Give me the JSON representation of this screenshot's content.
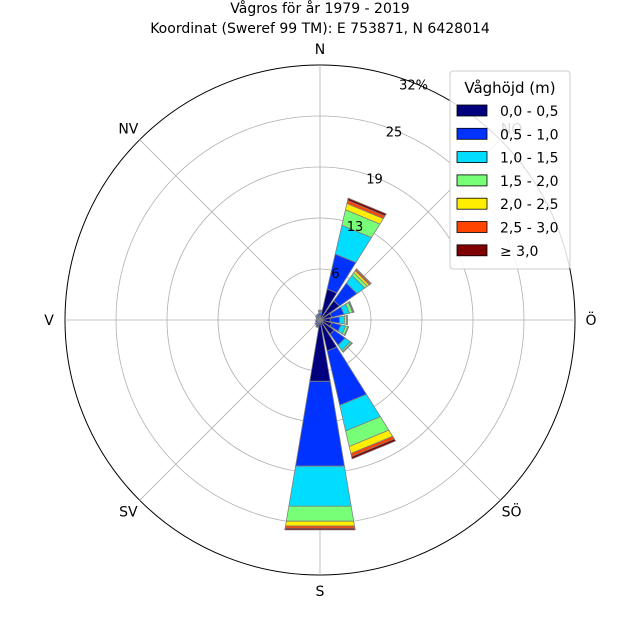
{
  "title": "Vågros för år 1979 - 2019",
  "subtitle": "Koordinat (Sweref 99 TM): E 753871, N 6428014",
  "chart_data": {
    "type": "windrose",
    "title": "Vågros för år 1979 - 2019",
    "subtitle": "Koordinat (Sweref 99 TM): E 753871, N 6428014",
    "direction_labels": [
      "N",
      "NO",
      "Ö",
      "SÖ",
      "S",
      "SV",
      "V",
      "NV"
    ],
    "direction_angles_deg": [
      0,
      45,
      90,
      135,
      180,
      225,
      270,
      315
    ],
    "radial_ticks": [
      "6",
      "13",
      "19",
      "25",
      "32%"
    ],
    "radial_tick_values": [
      6.4,
      12.8,
      19.2,
      25.6,
      32
    ],
    "rmax": 32,
    "grid": true,
    "legend": {
      "title": "Våghöjd (m)",
      "placement": "top-right",
      "entries": [
        "0,0 - 0,5",
        "0,5 - 1,0",
        "1,0 - 1,5",
        "1,5 - 2,0",
        "2,0 - 2,5",
        "2,5 - 3,0",
        "≥ 3,0"
      ]
    },
    "bin_colors": [
      "#00007f",
      "#0033ff",
      "#00ddff",
      "#77ff77",
      "#ffee00",
      "#ff4400",
      "#7f0000"
    ],
    "sectors": [
      {
        "dir_deg": 0,
        "values": [
          0.5,
          0.4,
          0.2,
          0.1,
          0.05,
          0.0,
          0.0
        ]
      },
      {
        "dir_deg": 22.5,
        "values": [
          4.0,
          4.5,
          3.7,
          2.0,
          0.8,
          0.4,
          0.3
        ]
      },
      {
        "dir_deg": 45,
        "values": [
          3.0,
          2.7,
          1.2,
          0.4,
          0.3,
          0.2,
          0.1
        ]
      },
      {
        "dir_deg": 67.5,
        "values": [
          1.5,
          1.6,
          0.7,
          0.4,
          0.1,
          0.1,
          0.0
        ]
      },
      {
        "dir_deg": 90,
        "values": [
          1.3,
          1.2,
          0.6,
          0.3,
          0.1,
          0.0,
          0.0
        ]
      },
      {
        "dir_deg": 112.5,
        "values": [
          1.5,
          1.2,
          0.6,
          0.3,
          0.1,
          0.0,
          0.0
        ]
      },
      {
        "dir_deg": 135,
        "values": [
          2.2,
          1.7,
          0.8,
          0.2,
          0.1,
          0.0,
          0.0
        ]
      },
      {
        "dir_deg": 157.5,
        "values": [
          4.0,
          7.0,
          3.3,
          2.0,
          0.9,
          0.4,
          0.3
        ]
      },
      {
        "dir_deg": 180,
        "values": [
          7.8,
          10.8,
          5.1,
          1.9,
          0.6,
          0.3,
          0.2
        ]
      },
      {
        "dir_deg": 202.5,
        "values": [
          0.6,
          0.3,
          0.1,
          0.0,
          0.0,
          0.0,
          0.0
        ]
      },
      {
        "dir_deg": 225,
        "values": [
          0.5,
          0.2,
          0.1,
          0.0,
          0.0,
          0.0,
          0.0
        ]
      },
      {
        "dir_deg": 247.5,
        "values": [
          0.4,
          0.2,
          0.0,
          0.0,
          0.0,
          0.0,
          0.0
        ]
      },
      {
        "dir_deg": 270,
        "values": [
          0.3,
          0.2,
          0.0,
          0.0,
          0.0,
          0.0,
          0.0
        ]
      },
      {
        "dir_deg": 292.5,
        "values": [
          0.3,
          0.2,
          0.0,
          0.0,
          0.0,
          0.0,
          0.0
        ]
      },
      {
        "dir_deg": 315,
        "values": [
          0.4,
          0.2,
          0.1,
          0.0,
          0.0,
          0.0,
          0.0
        ]
      },
      {
        "dir_deg": 337.5,
        "values": [
          0.4,
          0.3,
          0.1,
          0.0,
          0.0,
          0.0,
          0.0
        ]
      }
    ]
  }
}
